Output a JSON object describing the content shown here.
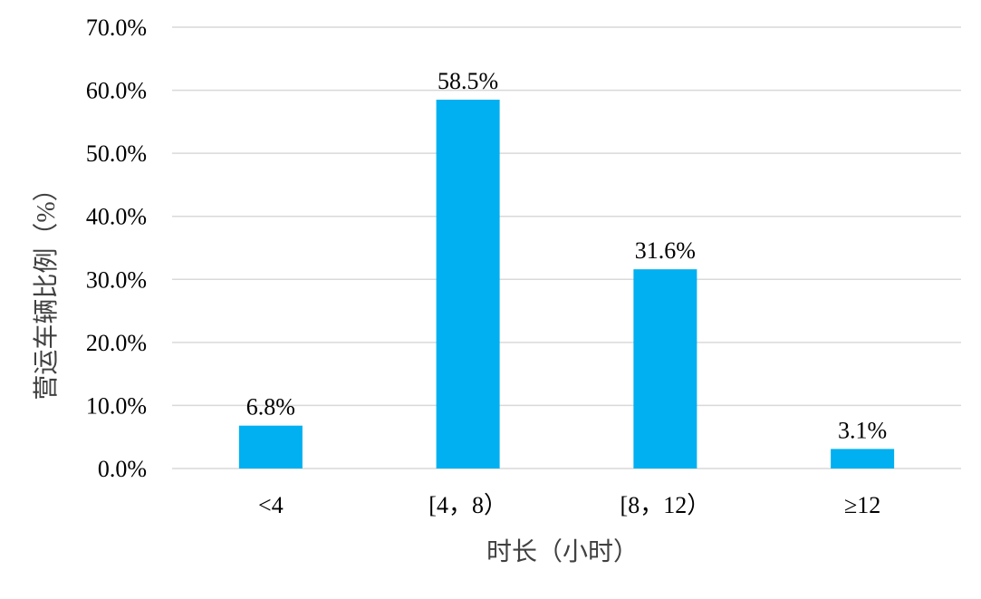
{
  "chart_data": {
    "type": "bar",
    "categories": [
      "<4",
      "[4，8）",
      "[8，12）",
      "≥12"
    ],
    "values": [
      6.8,
      58.5,
      31.6,
      3.1
    ],
    "data_labels": [
      "6.8%",
      "58.5%",
      "31.6%",
      "3.1%"
    ],
    "xlabel": "时长（小时）",
    "ylabel": "营运车辆比例（%）",
    "ylim": [
      0,
      70
    ],
    "yticks": [
      0,
      10,
      20,
      30,
      40,
      50,
      60,
      70
    ],
    "ytick_labels": [
      "0.0%",
      "10.0%",
      "20.0%",
      "30.0%",
      "40.0%",
      "50.0%",
      "60.0%",
      "70.0%"
    ],
    "grid": true,
    "legend": "none",
    "bar_color": "#00B0F0",
    "grid_color": "#D9D9D9"
  }
}
